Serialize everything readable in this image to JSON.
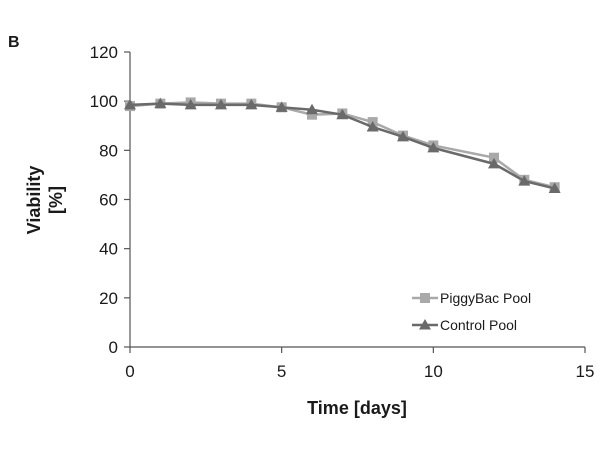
{
  "panel_label": "B",
  "chart_data": {
    "type": "line",
    "xlabel": "Time [days]",
    "ylabel_lines": [
      "Viability",
      "[%]"
    ],
    "xlim": [
      0,
      15
    ],
    "ylim": [
      0,
      120
    ],
    "x_ticks": [
      0,
      5,
      10,
      15
    ],
    "y_ticks": [
      0,
      20,
      40,
      60,
      80,
      100,
      120
    ],
    "grid": false,
    "legend_position": "bottom-right",
    "series": [
      {
        "name": "PiggyBac Pool",
        "marker": "square",
        "color": "#a9a9a9",
        "x": [
          0,
          1,
          2,
          3,
          4,
          5,
          6,
          7,
          8,
          9,
          10,
          12,
          13,
          14
        ],
        "y": [
          98,
          99,
          99.5,
          99,
          99,
          97.5,
          94.5,
          95,
          91.5,
          86,
          82,
          77,
          68,
          65
        ]
      },
      {
        "name": "Control Pool",
        "marker": "triangle",
        "color": "#6a6a6a",
        "x": [
          0,
          1,
          2,
          3,
          4,
          5,
          6,
          7,
          8,
          9,
          10,
          12,
          13,
          14
        ],
        "y": [
          98.5,
          99,
          98.5,
          98.5,
          98.5,
          97.5,
          96.5,
          94.5,
          89.5,
          85.5,
          81,
          74.5,
          67.5,
          64.5
        ]
      }
    ]
  }
}
